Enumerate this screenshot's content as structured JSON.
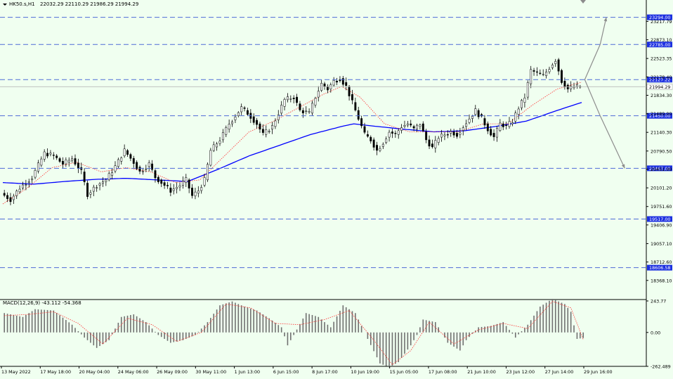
{
  "symbol_label": "HK50.s,H1",
  "ohlc_label": "22032.29 22110.29 21986.29 21994.29",
  "macd_label": "MACD(12,26,9) -43.112 -54.368",
  "colors": {
    "background": "#f0fff0",
    "candle": "#000000",
    "ma_slow": "#0000ff",
    "ma_fast": "#ff3030",
    "hline": "#4d6bd6",
    "level_badge": "#1c2fe0",
    "projection": "#8c8c8c",
    "macd_signal": "#ff3030",
    "macd_hist": "#707070"
  },
  "chart_data": [
    {
      "type": "candlestick",
      "title": "",
      "ylim": [
        18023,
        23460
      ],
      "price_ticks": [
        "23217.79",
        "22873.10",
        "22523.35",
        "22178.40",
        "21834.30",
        "21489.00",
        "21140.30",
        "20790.50",
        "20451.00",
        "20101.20",
        "19751.60",
        "19406.90",
        "19057.10",
        "18712.60",
        "18368.10"
      ],
      "price_tick_values": [
        23217.79,
        22873.1,
        22523.35,
        22178.4,
        21834.3,
        21489.0,
        21140.3,
        20790.5,
        20451.0,
        20101.2,
        19751.6,
        19406.9,
        19057.1,
        18712.6,
        18368.1
      ],
      "date_ticks": [
        "13 May 2022",
        "17 May 18:00",
        "20 May 04:00",
        "24 May 06:00",
        "26 May 09:00",
        "30 May 11:00",
        "1 Jun 13:00",
        "6 Jun 15:00",
        "8 Jun 17:00",
        "10 Jun 19:00",
        "15 Jun 05:00",
        "17 Jun 08:00",
        "21 Jun 10:00",
        "23 Jun 12:00",
        "27 Jun 14:00",
        "29 Jun 16:00"
      ],
      "horizontal_levels": [
        {
          "label": "23294.00",
          "value": 23294.0
        },
        {
          "label": "22785.00",
          "value": 22785.0
        },
        {
          "label": "22127.22",
          "value": 22127.22
        },
        {
          "label": "21994.29",
          "value": 21994.29,
          "dashed": false
        },
        {
          "label": "21450.00",
          "value": 21450.0
        },
        {
          "label": "20467.00",
          "value": 20467.0
        },
        {
          "label": "19517.00",
          "value": 19517.0
        },
        {
          "label": "18606.58",
          "value": 18606.58
        }
      ],
      "close_path": [
        [
          0,
          20000
        ],
        [
          3,
          19880
        ],
        [
          6,
          20100
        ],
        [
          10,
          20300
        ],
        [
          14,
          20750
        ],
        [
          17,
          20700
        ],
        [
          20,
          20550
        ],
        [
          23,
          20650
        ],
        [
          26,
          20400
        ],
        [
          28,
          19980
        ],
        [
          31,
          20150
        ],
        [
          34,
          20250
        ],
        [
          37,
          20500
        ],
        [
          40,
          20800
        ],
        [
          43,
          20580
        ],
        [
          45,
          20400
        ],
        [
          48,
          20550
        ],
        [
          50,
          20300
        ],
        [
          53,
          20150
        ],
        [
          55,
          20050
        ],
        [
          58,
          20150
        ],
        [
          60,
          20250
        ],
        [
          62,
          19950
        ],
        [
          64,
          20050
        ],
        [
          66,
          20250
        ],
        [
          68,
          20800
        ],
        [
          71,
          21000
        ],
        [
          74,
          21300
        ],
        [
          78,
          21600
        ],
        [
          80,
          21500
        ],
        [
          83,
          21300
        ],
        [
          85,
          21100
        ],
        [
          88,
          21250
        ],
        [
          90,
          21500
        ],
        [
          92,
          21750
        ],
        [
          95,
          21800
        ],
        [
          97,
          21550
        ],
        [
          100,
          21500
        ],
        [
          102,
          21800
        ],
        [
          104,
          22050
        ],
        [
          106,
          21950
        ],
        [
          108,
          22100
        ],
        [
          110,
          22150
        ],
        [
          112,
          22000
        ],
        [
          114,
          21700
        ],
        [
          116,
          21400
        ],
        [
          118,
          21100
        ],
        [
          120,
          21000
        ],
        [
          122,
          20800
        ],
        [
          124,
          20950
        ],
        [
          126,
          21150
        ],
        [
          128,
          21100
        ],
        [
          130,
          21250
        ],
        [
          132,
          21300
        ],
        [
          134,
          21200
        ],
        [
          136,
          21300
        ],
        [
          138,
          21000
        ],
        [
          140,
          20850
        ],
        [
          142,
          21050
        ],
        [
          144,
          21100
        ],
        [
          146,
          21150
        ],
        [
          148,
          21100
        ],
        [
          150,
          21250
        ],
        [
          152,
          21400
        ],
        [
          154,
          21550
        ],
        [
          156,
          21400
        ],
        [
          158,
          21200
        ],
        [
          160,
          21050
        ],
        [
          162,
          21300
        ],
        [
          164,
          21250
        ],
        [
          166,
          21350
        ],
        [
          168,
          21600
        ],
        [
          170,
          21800
        ],
        [
          172,
          22300
        ],
        [
          174,
          22250
        ],
        [
          176,
          22200
        ],
        [
          178,
          22350
        ],
        [
          180,
          22500
        ],
        [
          182,
          22100
        ],
        [
          184,
          21950
        ],
        [
          186,
          22000
        ],
        [
          188,
          21994.29
        ]
      ],
      "ma_slow": [
        [
          0,
          20200
        ],
        [
          10,
          20170
        ],
        [
          20,
          20220
        ],
        [
          30,
          20260
        ],
        [
          40,
          20280
        ],
        [
          50,
          20250
        ],
        [
          60,
          20220
        ],
        [
          70,
          20450
        ],
        [
          80,
          20700
        ],
        [
          90,
          20900
        ],
        [
          100,
          21100
        ],
        [
          110,
          21250
        ],
        [
          114,
          21300
        ],
        [
          120,
          21260
        ],
        [
          130,
          21200
        ],
        [
          140,
          21150
        ],
        [
          150,
          21170
        ],
        [
          160,
          21250
        ],
        [
          170,
          21350
        ],
        [
          180,
          21550
        ],
        [
          188,
          21700
        ]
      ],
      "ma_fast": [
        [
          0,
          19800
        ],
        [
          8,
          20100
        ],
        [
          16,
          20480
        ],
        [
          24,
          20580
        ],
        [
          32,
          20400
        ],
        [
          40,
          20480
        ],
        [
          48,
          20400
        ],
        [
          56,
          20200
        ],
        [
          64,
          20250
        ],
        [
          72,
          20700
        ],
        [
          80,
          21150
        ],
        [
          88,
          21350
        ],
        [
          96,
          21600
        ],
        [
          104,
          21850
        ],
        [
          110,
          22000
        ],
        [
          116,
          21800
        ],
        [
          124,
          21300
        ],
        [
          132,
          21150
        ],
        [
          140,
          21150
        ],
        [
          148,
          21150
        ],
        [
          156,
          21300
        ],
        [
          164,
          21300
        ],
        [
          172,
          21650
        ],
        [
          180,
          21950
        ],
        [
          188,
          22080
        ]
      ],
      "projections": [
        {
          "from": [
            189,
            22127.22
          ],
          "to": [
            194,
            22785.0
          ],
          "arrow_to": [
            196,
            23294.0
          ]
        },
        {
          "from": [
            189,
            22127.22
          ],
          "to": [
            194,
            21450.0
          ],
          "arrow_to": [
            202,
            20467.0
          ]
        }
      ]
    },
    {
      "type": "bar",
      "title": "MACD(12,26,9) -43.112 -54.368",
      "ylim": [
        -262.489,
        243.77
      ],
      "ticks": [
        "243.77",
        "0.00",
        "-262.489"
      ],
      "tick_values": [
        243.77,
        0.0,
        -262.489
      ],
      "histogram_path": [
        [
          0,
          150
        ],
        [
          6,
          120
        ],
        [
          10,
          180
        ],
        [
          16,
          170
        ],
        [
          22,
          60
        ],
        [
          26,
          -40
        ],
        [
          30,
          -120
        ],
        [
          34,
          -60
        ],
        [
          38,
          120
        ],
        [
          42,
          140
        ],
        [
          46,
          80
        ],
        [
          50,
          -20
        ],
        [
          54,
          -80
        ],
        [
          58,
          -60
        ],
        [
          62,
          -20
        ],
        [
          66,
          80
        ],
        [
          70,
          210
        ],
        [
          74,
          240
        ],
        [
          78,
          200
        ],
        [
          82,
          170
        ],
        [
          86,
          110
        ],
        [
          90,
          40
        ],
        [
          92,
          -100
        ],
        [
          94,
          -20
        ],
        [
          98,
          150
        ],
        [
          102,
          120
        ],
        [
          106,
          40
        ],
        [
          110,
          210
        ],
        [
          114,
          150
        ],
        [
          118,
          -50
        ],
        [
          122,
          -240
        ],
        [
          125,
          -270
        ],
        [
          128,
          -230
        ],
        [
          132,
          -100
        ],
        [
          134,
          -20
        ],
        [
          136,
          100
        ],
        [
          140,
          80
        ],
        [
          144,
          -80
        ],
        [
          148,
          -140
        ],
        [
          150,
          -60
        ],
        [
          154,
          40
        ],
        [
          158,
          50
        ],
        [
          162,
          80
        ],
        [
          166,
          -40
        ],
        [
          170,
          60
        ],
        [
          174,
          200
        ],
        [
          178,
          260
        ],
        [
          182,
          220
        ],
        [
          184,
          160
        ],
        [
          186,
          -50
        ],
        [
          188,
          -43.112
        ]
      ],
      "signal_path": [
        [
          0,
          130
        ],
        [
          8,
          140
        ],
        [
          16,
          160
        ],
        [
          24,
          70
        ],
        [
          32,
          -90
        ],
        [
          40,
          110
        ],
        [
          48,
          60
        ],
        [
          56,
          -70
        ],
        [
          64,
          0
        ],
        [
          72,
          220
        ],
        [
          80,
          190
        ],
        [
          88,
          70
        ],
        [
          96,
          60
        ],
        [
          104,
          100
        ],
        [
          112,
          170
        ],
        [
          120,
          -60
        ],
        [
          126,
          -250
        ],
        [
          132,
          -140
        ],
        [
          138,
          80
        ],
        [
          146,
          -90
        ],
        [
          154,
          20
        ],
        [
          162,
          70
        ],
        [
          170,
          30
        ],
        [
          178,
          240
        ],
        [
          184,
          190
        ],
        [
          188,
          -54.368
        ]
      ]
    }
  ]
}
